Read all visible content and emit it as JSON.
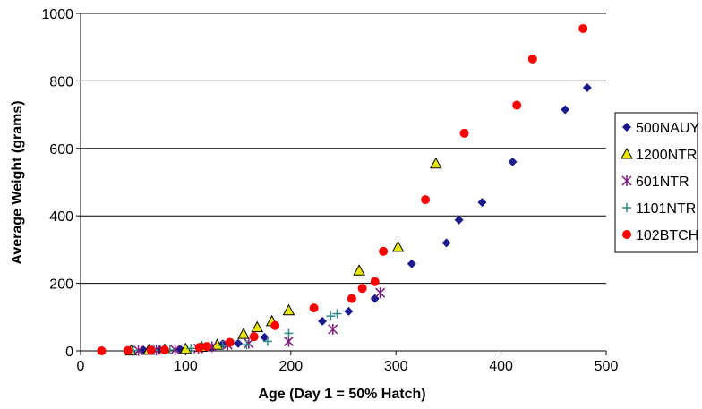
{
  "chart_data": {
    "type": "scatter",
    "title": "",
    "xlabel": "Age (Day 1 = 50% Hatch)",
    "ylabel": "Average Weight (grams)",
    "xlim": [
      0,
      500
    ],
    "ylim": [
      0,
      1000
    ],
    "xticks": [
      "0",
      "100",
      "200",
      "300",
      "400",
      "500"
    ],
    "yticks": [
      "0",
      "200",
      "400",
      "600",
      "800",
      "1000"
    ],
    "grid": "horizontal",
    "legend_position": "right",
    "series": [
      {
        "name": "500NAUY",
        "marker": "diamond",
        "color": "#1a1a8c",
        "points": [
          [
            45,
            1
          ],
          [
            60,
            2
          ],
          [
            75,
            3
          ],
          [
            95,
            4
          ],
          [
            115,
            6
          ],
          [
            125,
            10
          ],
          [
            135,
            20
          ],
          [
            150,
            22
          ],
          [
            175,
            40
          ],
          [
            230,
            88
          ],
          [
            255,
            117
          ],
          [
            280,
            155
          ],
          [
            315,
            258
          ],
          [
            348,
            320
          ],
          [
            360,
            388
          ],
          [
            382,
            440
          ],
          [
            411,
            560
          ],
          [
            461,
            715
          ],
          [
            482,
            780
          ]
        ]
      },
      {
        "name": "1200NTR",
        "marker": "triangle",
        "color": "#e6e600",
        "points": [
          [
            48,
            1
          ],
          [
            65,
            3
          ],
          [
            80,
            4
          ],
          [
            100,
            6
          ],
          [
            115,
            12
          ],
          [
            130,
            18
          ],
          [
            155,
            50
          ],
          [
            168,
            70
          ],
          [
            182,
            88
          ],
          [
            198,
            120
          ],
          [
            265,
            238
          ],
          [
            302,
            308
          ],
          [
            338,
            555
          ]
        ]
      },
      {
        "name": "601NTR",
        "marker": "asterisk",
        "color": "#7a1a7a",
        "points": [
          [
            55,
            1
          ],
          [
            72,
            2
          ],
          [
            90,
            3
          ],
          [
            112,
            7
          ],
          [
            125,
            12
          ],
          [
            140,
            18
          ],
          [
            160,
            22
          ],
          [
            198,
            28
          ],
          [
            240,
            64
          ],
          [
            285,
            172
          ]
        ]
      },
      {
        "name": "1101NTR",
        "marker": "plus",
        "color": "#2e8b8b",
        "points": [
          [
            20,
            0
          ],
          [
            50,
            1
          ],
          [
            70,
            2
          ],
          [
            85,
            3
          ],
          [
            105,
            7
          ],
          [
            135,
            16
          ],
          [
            158,
            18
          ],
          [
            178,
            28
          ],
          [
            198,
            52
          ],
          [
            238,
            103
          ],
          [
            244,
            110
          ]
        ]
      },
      {
        "name": "102BTCH",
        "marker": "circle",
        "color": "#ff0000",
        "points": [
          [
            20,
            0
          ],
          [
            45,
            1
          ],
          [
            67,
            2
          ],
          [
            80,
            3
          ],
          [
            113,
            10
          ],
          [
            120,
            13
          ],
          [
            142,
            25
          ],
          [
            165,
            42
          ],
          [
            185,
            75
          ],
          [
            222,
            127
          ],
          [
            258,
            155
          ],
          [
            268,
            185
          ],
          [
            280,
            205
          ],
          [
            288,
            295
          ],
          [
            328,
            448
          ],
          [
            365,
            645
          ],
          [
            415,
            728
          ],
          [
            430,
            865
          ],
          [
            478,
            955
          ]
        ]
      }
    ]
  }
}
